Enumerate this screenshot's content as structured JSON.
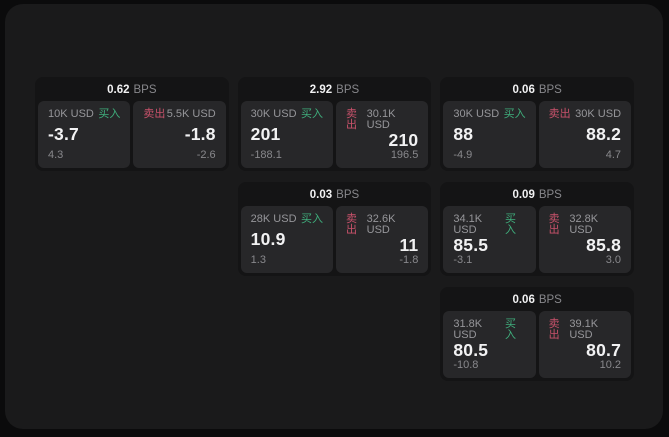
{
  "labels": {
    "bps_unit": "BPS",
    "buy": "买入",
    "sell": "卖出"
  },
  "colors": {
    "page_bg": "#0b0b0c",
    "window_bg": "#1a1a1b",
    "card_bg": "#141415",
    "panel_bg": "#272729",
    "buy_green": "#3fae7c",
    "sell_red": "#c9526b",
    "value_white": "#f2f2f3",
    "muted_gray": "#96969a"
  },
  "cards": [
    {
      "bps": "0.62",
      "buy": {
        "notional": "10K USD",
        "value": "-3.7",
        "sub": "4.3"
      },
      "sell": {
        "notional": "5.5K USD",
        "value": "-1.8",
        "sub": "-2.6"
      }
    },
    {
      "bps": "2.92",
      "buy": {
        "notional": "30K USD",
        "value": "201",
        "sub": "-188.1"
      },
      "sell": {
        "notional": "30.1K USD",
        "value": "210",
        "sub": "196.5"
      }
    },
    {
      "bps": "0.06",
      "buy": {
        "notional": "30K USD",
        "value": "88",
        "sub": "-4.9"
      },
      "sell": {
        "notional": "30K USD",
        "value": "88.2",
        "sub": "4.7"
      }
    },
    {
      "bps": "0.03",
      "buy": {
        "notional": "28K USD",
        "value": "10.9",
        "sub": "1.3"
      },
      "sell": {
        "notional": "32.6K USD",
        "value": "11",
        "sub": "-1.8"
      }
    },
    {
      "bps": "0.09",
      "buy": {
        "notional": "34.1K USD",
        "value": "85.5",
        "sub": "-3.1"
      },
      "sell": {
        "notional": "32.8K USD",
        "value": "85.8",
        "sub": "3.0"
      }
    },
    {
      "bps": "0.06",
      "buy": {
        "notional": "31.8K USD",
        "value": "80.5",
        "sub": "-10.8"
      },
      "sell": {
        "notional": "39.1K USD",
        "value": "80.7",
        "sub": "10.2"
      }
    }
  ]
}
